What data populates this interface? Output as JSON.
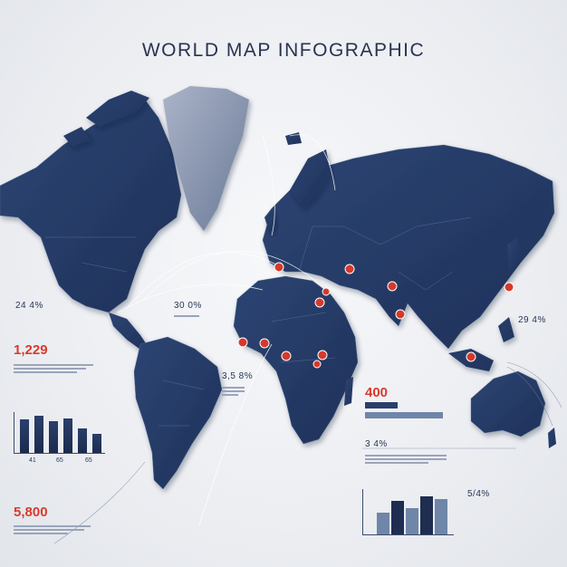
{
  "title": "WORLD MAP INFOGRAPHIC",
  "colors": {
    "land": "#253b67",
    "greenland": "#8b98b3",
    "marker": "#d5392c",
    "accent_red": "#d93a2e",
    "bar": "#1e2d50",
    "bar_light": "#6f86a8"
  },
  "stats": {
    "left_pct": "24 4%",
    "left_big": "1,229",
    "left_bottom_big": "5,800",
    "center_pct": "30 0%",
    "center_lower_pct": "3,5 8%",
    "right_pct": "29 4%",
    "right_big": "400",
    "right_mid_pct": "3 4%",
    "right_bottom_pct": "5/4%"
  },
  "left_chart": {
    "bars": [
      62,
      68,
      58,
      64,
      45,
      35
    ],
    "labels": [
      "41",
      "65",
      "65"
    ]
  },
  "bottom_chart": {
    "bars": [
      50,
      78,
      60,
      88,
      82
    ]
  },
  "hbars": {
    "values": [
      0.38,
      0.9
    ]
  }
}
